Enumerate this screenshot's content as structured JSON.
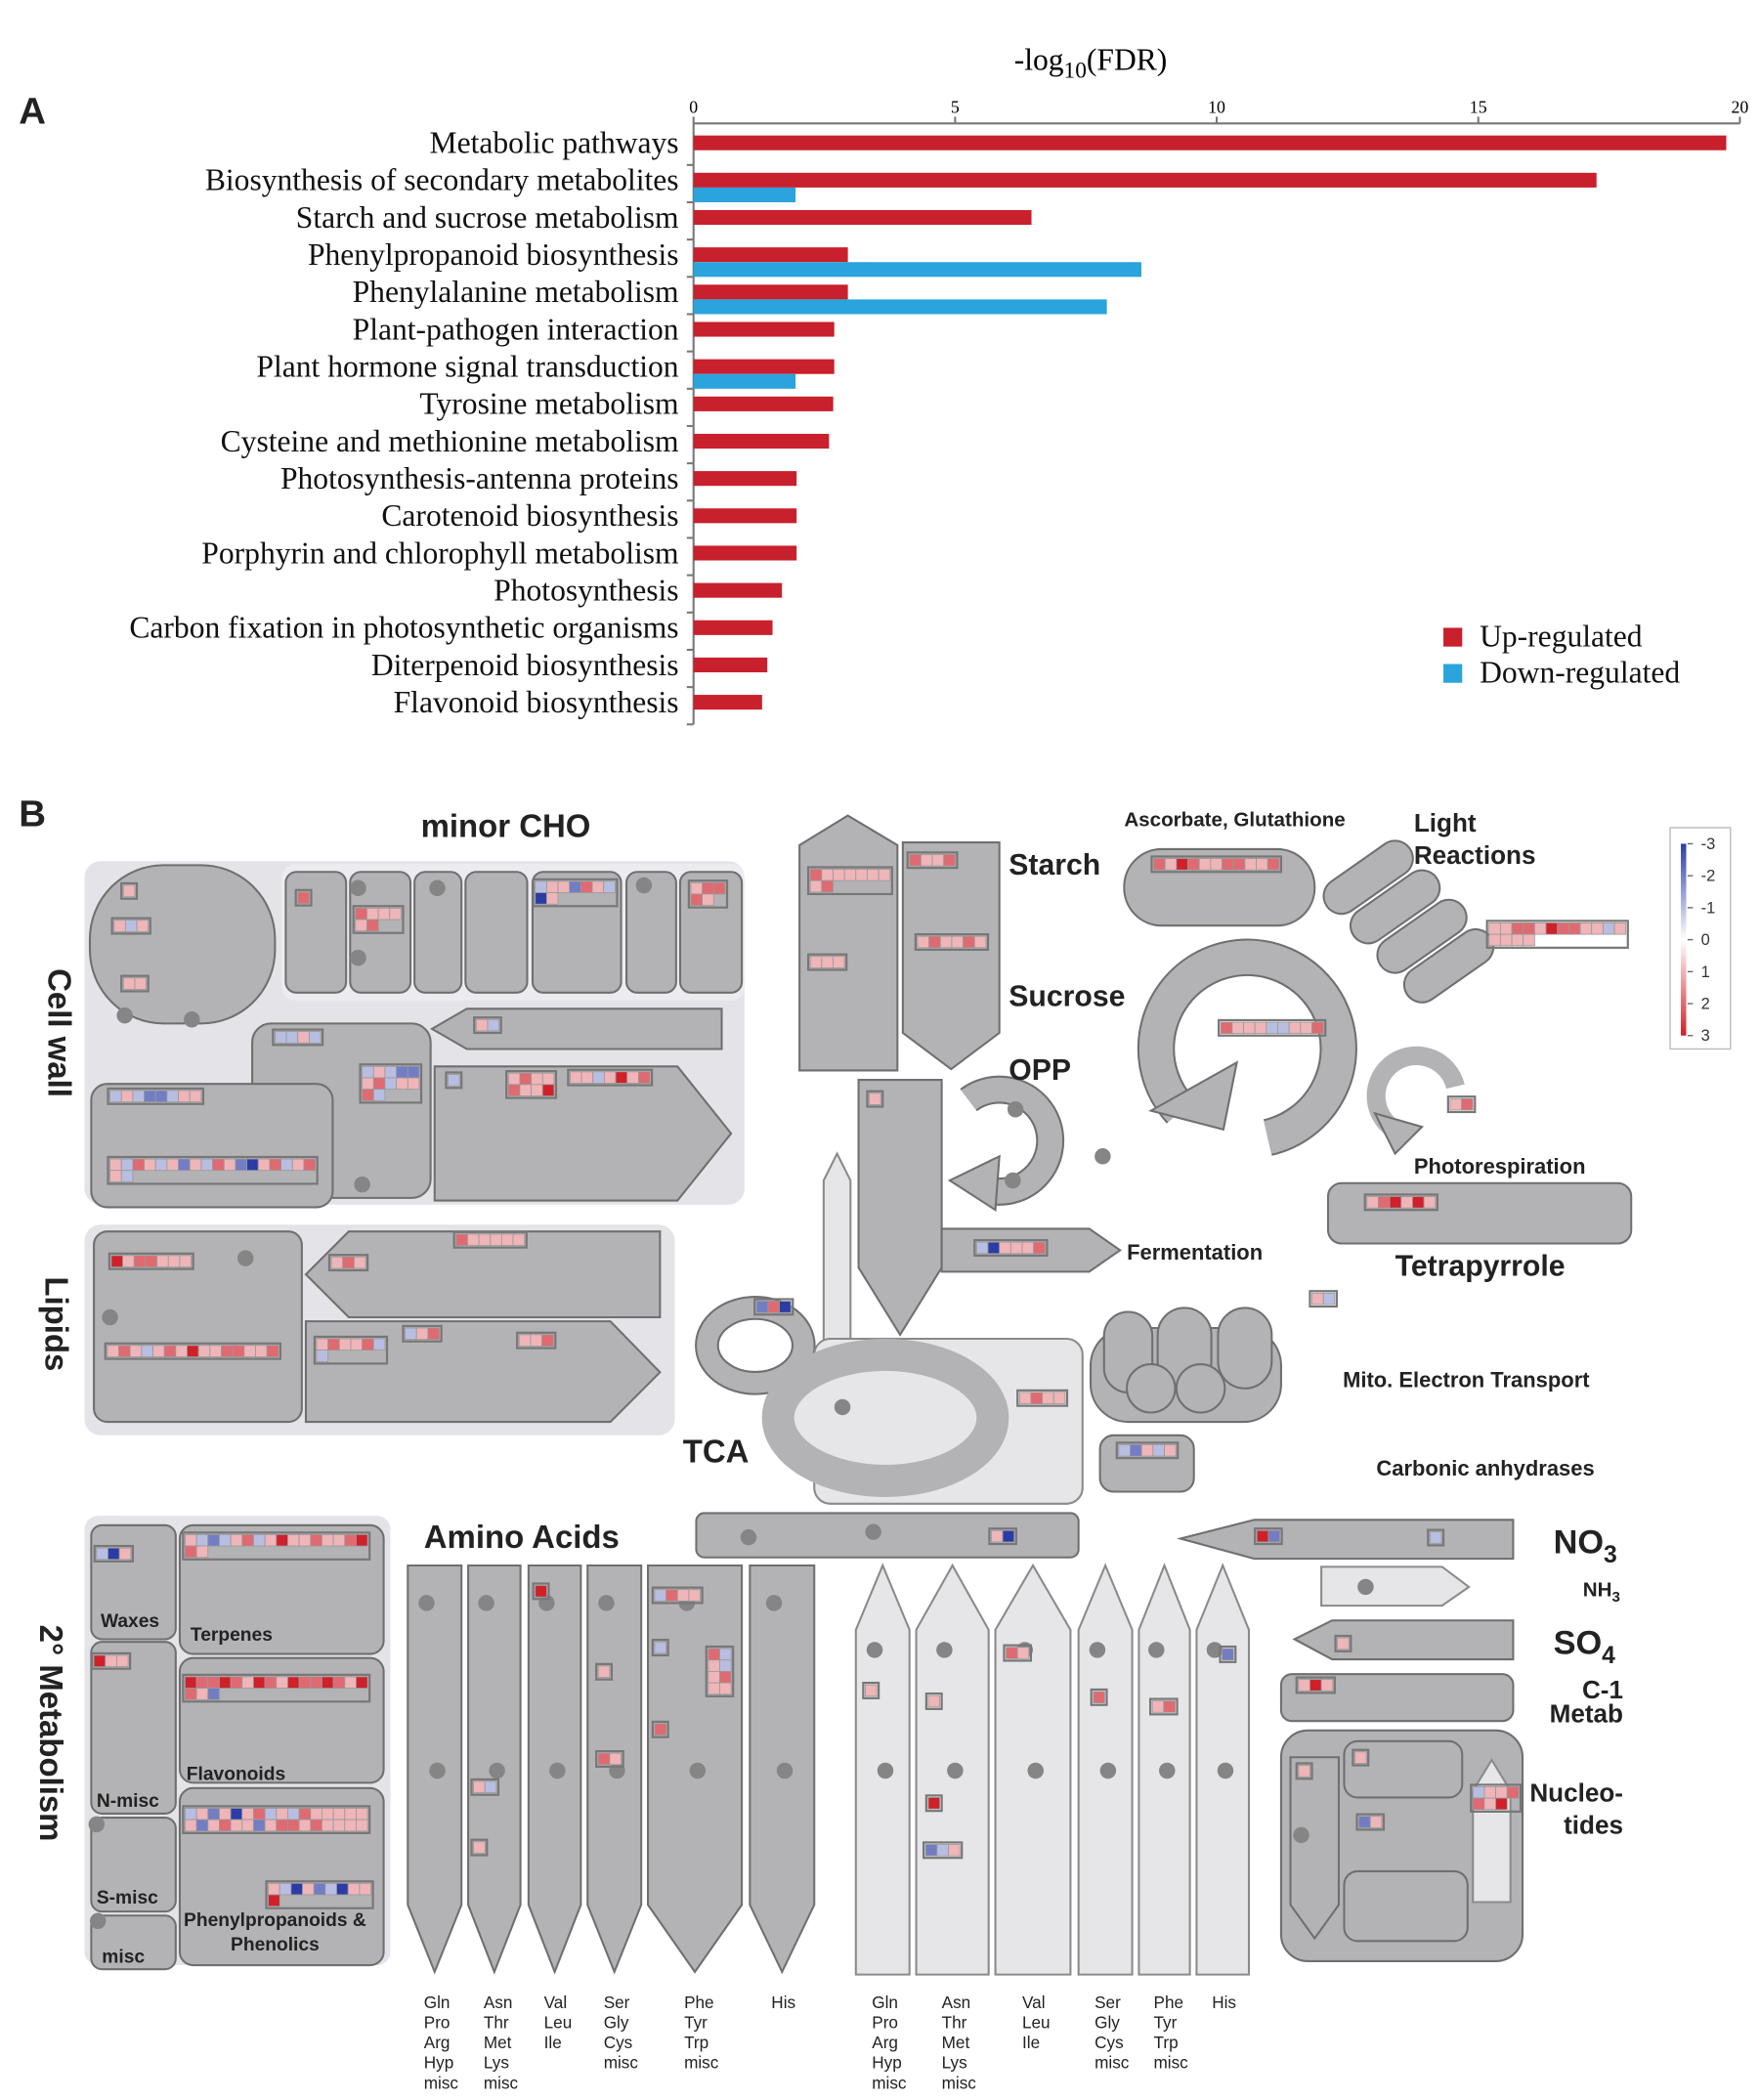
{
  "panel_labels": [
    "A",
    "B"
  ],
  "chart_data": {
    "type": "bar",
    "orientation": "horizontal",
    "x_label": {
      "text": "-log",
      "subscript": "10",
      "suffix": "(FDR)"
    },
    "categories": [
      "Metabolic pathways",
      "Biosynthesis of secondary metabolites",
      "Starch and sucrose metabolism",
      "Phenylpropanoid biosynthesis",
      "Phenylalanine metabolism",
      "Plant-pathogen interaction",
      "Plant hormone signal transduction",
      "Tyrosine metabolism",
      "Cysteine and methionine metabolism",
      "Photosynthesis-antenna proteins",
      "Carotenoid biosynthesis",
      "Porphyrin and chlorophyll metabolism",
      "Photosynthesis",
      "Carbon fixation in photosynthetic organisms",
      "Diterpenoid biosynthesis",
      "Flavonoid biosynthesis"
    ],
    "series": [
      {
        "name": "Up-regulated",
        "color": "#c8202c",
        "values": [
          19.74,
          17.26,
          6.46,
          2.95,
          2.95,
          2.69,
          2.69,
          2.67,
          2.59,
          1.97,
          1.97,
          1.97,
          1.69,
          1.51,
          1.41,
          1.31
        ]
      },
      {
        "name": "Down-regulated",
        "color": "#2ba3dc",
        "values": [
          null,
          1.95,
          null,
          8.56,
          7.9,
          null,
          1.95,
          null,
          null,
          null,
          null,
          null,
          null,
          null,
          null,
          null
        ]
      }
    ],
    "xlim": [
      0,
      20
    ],
    "xticks": [
      0,
      5,
      10,
      15,
      20
    ],
    "legend": "lower right"
  },
  "diagram": {
    "minor_cho": "minor CHO",
    "cell_wall": "Cell wall",
    "lipids": "Lipids",
    "secondary_metabolism": "2° Metabolism",
    "starch": "Starch",
    "sucrose": "Sucrose",
    "opp": "OPP",
    "ascorbate": "Ascorbate, Glutathione",
    "light_reactions": [
      "Light",
      "Reactions"
    ],
    "photorespiration": "Photorespiration",
    "tetrapyrrole": "Tetrapyrrole",
    "fermentation": "Fermentation",
    "mito": "Mito. Electron Transport",
    "carbonic": "Carbonic anhydrases",
    "tca": "TCA",
    "amino_acids": "Amino Acids",
    "no3": {
      "text": "NO",
      "sub": "3"
    },
    "nh3": {
      "text": "NH",
      "sub": "3"
    },
    "so4": {
      "text": "SO",
      "sub": "4"
    },
    "c1": [
      "C-1",
      "Metab"
    ],
    "nucleotides": [
      "Nucleo-",
      "tides"
    ],
    "waxes": "Waxes",
    "terpenes": "Terpenes",
    "n_misc": "N-misc",
    "flavonoids": "Flavonoids",
    "s_misc": "S-misc",
    "misc": "misc",
    "phenylpropanoids": [
      "Phenylpropanoids &",
      "Phenolics"
    ],
    "amino_acid_columns": [
      [
        "Gln",
        "Pro",
        "Arg",
        "Hyp",
        "misc"
      ],
      [
        "Asn",
        "Thr",
        "Met",
        "Lys",
        "misc"
      ],
      [
        "Val",
        "Leu",
        "Ile"
      ],
      [
        "Ser",
        "Gly",
        "Cys",
        "misc"
      ],
      [
        "Phe",
        "Tyr",
        "Trp",
        "misc"
      ],
      [
        "His"
      ],
      [
        "Gln",
        "Pro",
        "Arg",
        "Hyp",
        "misc"
      ],
      [
        "Asn",
        "Thr",
        "Met",
        "Lys",
        "misc"
      ],
      [
        "Val",
        "Leu",
        "Ile"
      ],
      [
        "Ser",
        "Gly",
        "Cys",
        "misc"
      ],
      [
        "Phe",
        "Tyr",
        "Trp",
        "misc"
      ],
      [
        "His"
      ]
    ],
    "color_scale": {
      "ticks": [
        -3,
        -2,
        -1,
        0,
        1,
        2,
        3
      ],
      "colors": [
        "#2b3ca6",
        "#ffffff",
        "#d0202a"
      ]
    },
    "heatmaps": [
      [
        1
      ],
      [
        1,
        -1,
        1
      ],
      [
        1,
        1
      ],
      [
        2
      ],
      [
        2,
        1,
        1,
        1,
        1,
        2
      ],
      [
        -1,
        1,
        1,
        -2,
        2,
        1,
        -1,
        -3,
        1
      ],
      [
        1,
        2,
        2,
        2,
        1
      ],
      [
        -1,
        -1,
        1,
        -1
      ],
      [
        1,
        -1
      ],
      [
        -1,
        1,
        -1,
        -2,
        -2,
        1,
        2,
        -1,
        1,
        1,
        2,
        -1
      ],
      [
        -1
      ],
      [
        1,
        2,
        1,
        1,
        2,
        1,
        1,
        3
      ],
      [
        1,
        1,
        -1,
        1,
        3,
        1,
        2
      ],
      [
        -1,
        1,
        -1,
        -2,
        -2,
        -1,
        1,
        1
      ],
      [
        1,
        -1,
        2,
        1,
        -1,
        1,
        -2,
        1,
        -1,
        2,
        1,
        -2,
        -3,
        1,
        2,
        -1,
        1,
        2,
        1,
        -1
      ],
      [
        3,
        1,
        2,
        2,
        1,
        1,
        1
      ],
      [
        1,
        2,
        1
      ],
      [
        2,
        1,
        1,
        1,
        1,
        1
      ],
      [
        1,
        2,
        1,
        -1,
        1,
        2,
        1,
        3,
        1,
        1,
        2,
        2,
        1,
        1,
        2
      ],
      [
        1,
        2,
        1,
        1,
        2,
        -1,
        -1
      ],
      [
        -1,
        1,
        2
      ],
      [
        1,
        1,
        2
      ],
      [
        2,
        1,
        1,
        1,
        1,
        1,
        1,
        1,
        2
      ],
      [
        2,
        1,
        1,
        2
      ],
      [
        1,
        1,
        1
      ],
      [
        1,
        2,
        1,
        1,
        2,
        1
      ],
      [
        2,
        1,
        3,
        2,
        1,
        1,
        2,
        2,
        1,
        1,
        2
      ],
      [
        1,
        1,
        2,
        2,
        1,
        3,
        2,
        2,
        1,
        1,
        -1,
        1,
        1,
        1,
        1,
        1
      ],
      [
        2,
        1,
        1,
        1,
        -1,
        -1,
        1,
        1,
        2
      ],
      [
        1,
        2
      ],
      [
        1
      ],
      [
        1,
        2,
        3,
        1,
        3,
        1
      ],
      [
        -1,
        -3,
        1,
        1,
        1,
        2
      ],
      [
        1,
        -1
      ],
      [
        -2,
        2,
        -3
      ],
      [
        1,
        2,
        1,
        1
      ],
      [
        -1,
        -2,
        1,
        -1,
        1
      ],
      [
        1,
        -3
      ],
      [
        3,
        -2
      ],
      [
        -1
      ],
      [
        -1,
        -3,
        1
      ],
      [
        1,
        -1,
        -2,
        -1,
        1,
        2,
        -1,
        1,
        3,
        1,
        1,
        2,
        1,
        1,
        2,
        3,
        2,
        1
      ],
      [
        3,
        1,
        1
      ],
      [
        3,
        2,
        2,
        3,
        2,
        1,
        3,
        2,
        1,
        3,
        2,
        2,
        3,
        2,
        1,
        3,
        2,
        1,
        -2
      ],
      [
        -1,
        1,
        -2,
        1,
        -3,
        1,
        2,
        -1,
        1,
        -1,
        2,
        1,
        1,
        1,
        1,
        1,
        1,
        -2,
        1,
        2,
        1,
        1,
        -2,
        1,
        2,
        2,
        1,
        2,
        1,
        1,
        1,
        1
      ],
      [
        1,
        -1,
        -3,
        1,
        -2,
        -1,
        -3,
        1,
        1,
        3
      ],
      [
        3
      ],
      [
        -1,
        2,
        1,
        1
      ],
      [
        2,
        -1,
        1,
        -1,
        1,
        2,
        1,
        1
      ],
      [
        -1
      ],
      [
        1
      ],
      [
        2,
        1
      ],
      [
        2
      ],
      [
        1,
        -1
      ],
      [
        1
      ],
      [
        1
      ],
      [
        1
      ],
      [
        2,
        1
      ],
      [
        2
      ],
      [
        1,
        2
      ],
      [
        3
      ],
      [
        -2,
        -1,
        1
      ],
      [
        -2
      ],
      [
        1
      ],
      [
        1,
        3,
        1
      ],
      [
        1
      ],
      [
        1
      ],
      [
        -2,
        1
      ],
      [
        -1,
        1,
        1,
        2,
        2,
        1,
        3
      ]
    ]
  }
}
